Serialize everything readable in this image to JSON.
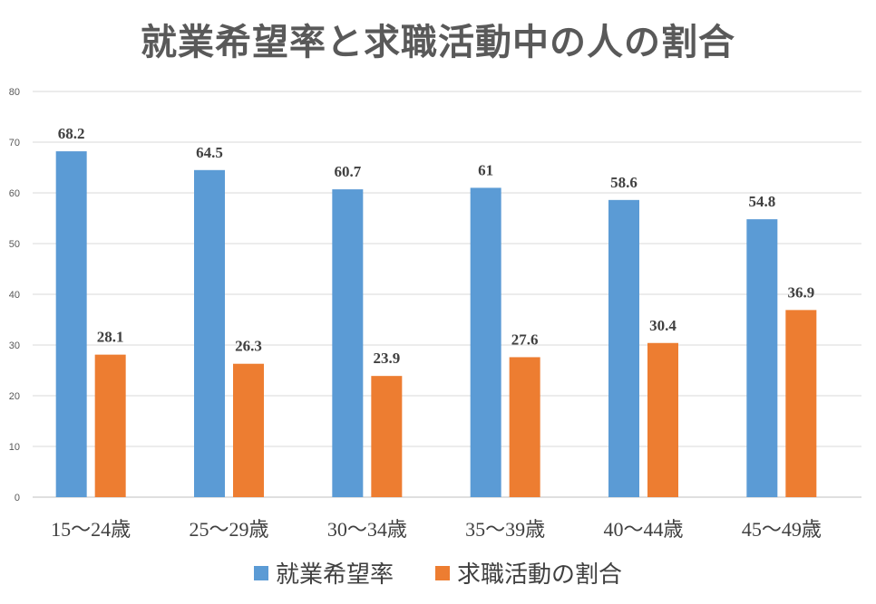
{
  "chart_data": {
    "type": "bar",
    "title": "就業希望率と求職活動中の人の割合",
    "categories": [
      "15〜24歳",
      "25〜29歳",
      "30〜34歳",
      "35〜39歳",
      "40〜44歳",
      "45〜49歳"
    ],
    "series": [
      {
        "name": "就業希望率",
        "color": "#5B9BD5",
        "values": [
          68.2,
          64.5,
          60.7,
          61,
          58.6,
          54.8
        ],
        "labels": [
          "68.2",
          "64.5",
          "60.7",
          "61",
          "58.6",
          "54.8"
        ]
      },
      {
        "name": "求職活動の割合",
        "color": "#ED7D31",
        "values": [
          28.1,
          26.3,
          23.9,
          27.6,
          30.4,
          36.9
        ],
        "labels": [
          "28.1",
          "26.3",
          "23.9",
          "27.6",
          "30.4",
          "36.9"
        ]
      }
    ],
    "ylim": [
      0,
      80
    ],
    "yticks": [
      "0",
      "10",
      "20",
      "30",
      "40",
      "50",
      "60",
      "70",
      "80"
    ],
    "grid": true,
    "legend": "bottom",
    "xlabel": "",
    "ylabel": ""
  }
}
